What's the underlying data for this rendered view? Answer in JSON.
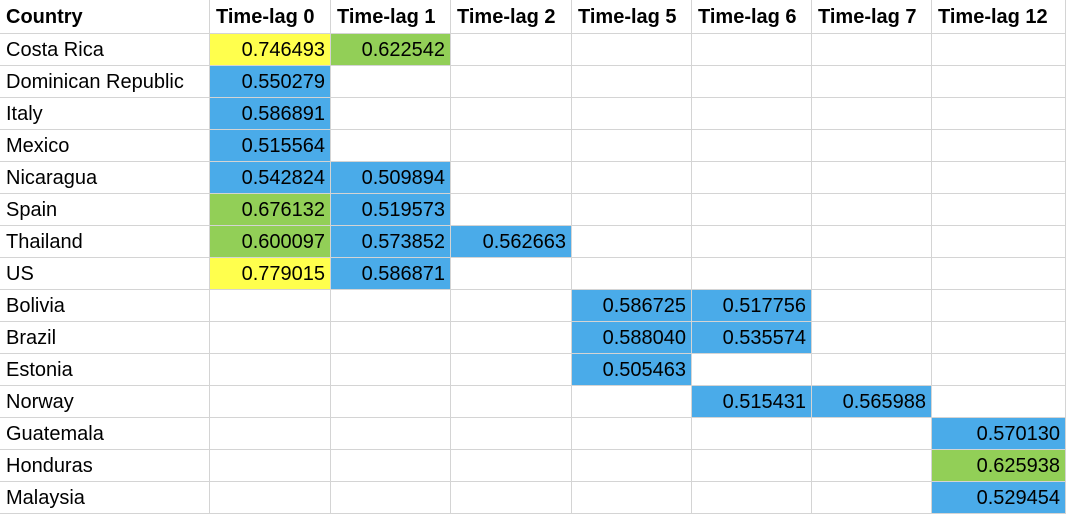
{
  "colors": {
    "yellow": "#ffff4d",
    "green": "#92cf57",
    "blue": "#4aabe9",
    "grid": "#d4d4d4"
  },
  "header": [
    "Country",
    "Time-lag 0",
    "Time-lag 1",
    "Time-lag 2",
    "Time-lag 5",
    "Time-lag 6",
    "Time-lag 7",
    "Time-lag 12"
  ],
  "rows": [
    {
      "country": "Costa Rica",
      "cells": [
        {
          "v": "0.746493",
          "c": "yellow"
        },
        {
          "v": "0.622542",
          "c": "green"
        },
        null,
        null,
        null,
        null,
        null
      ]
    },
    {
      "country": "Dominican Republic",
      "cells": [
        {
          "v": "0.550279",
          "c": "blue"
        },
        null,
        null,
        null,
        null,
        null,
        null
      ]
    },
    {
      "country": "Italy",
      "cells": [
        {
          "v": "0.586891",
          "c": "blue"
        },
        null,
        null,
        null,
        null,
        null,
        null
      ]
    },
    {
      "country": "Mexico",
      "cells": [
        {
          "v": "0.515564",
          "c": "blue"
        },
        null,
        null,
        null,
        null,
        null,
        null
      ]
    },
    {
      "country": "Nicaragua",
      "cells": [
        {
          "v": "0.542824",
          "c": "blue"
        },
        {
          "v": "0.509894",
          "c": "blue"
        },
        null,
        null,
        null,
        null,
        null
      ]
    },
    {
      "country": "Spain",
      "cells": [
        {
          "v": "0.676132",
          "c": "green"
        },
        {
          "v": "0.519573",
          "c": "blue"
        },
        null,
        null,
        null,
        null,
        null
      ]
    },
    {
      "country": "Thailand",
      "cells": [
        {
          "v": "0.600097",
          "c": "green"
        },
        {
          "v": "0.573852",
          "c": "blue"
        },
        {
          "v": "0.562663",
          "c": "blue"
        },
        null,
        null,
        null,
        null
      ]
    },
    {
      "country": "US",
      "cells": [
        {
          "v": "0.779015",
          "c": "yellow"
        },
        {
          "v": "0.586871",
          "c": "blue"
        },
        null,
        null,
        null,
        null,
        null
      ]
    },
    {
      "country": "Bolivia",
      "cells": [
        null,
        null,
        null,
        {
          "v": "0.586725",
          "c": "blue"
        },
        {
          "v": "0.517756",
          "c": "blue"
        },
        null,
        null
      ]
    },
    {
      "country": "Brazil",
      "cells": [
        null,
        null,
        null,
        {
          "v": "0.588040",
          "c": "blue"
        },
        {
          "v": "0.535574",
          "c": "blue"
        },
        null,
        null
      ]
    },
    {
      "country": "Estonia",
      "cells": [
        null,
        null,
        null,
        {
          "v": "0.505463",
          "c": "blue"
        },
        null,
        null,
        null
      ]
    },
    {
      "country": "Norway",
      "cells": [
        null,
        null,
        null,
        null,
        {
          "v": "0.515431",
          "c": "blue"
        },
        {
          "v": "0.565988",
          "c": "blue"
        },
        null
      ]
    },
    {
      "country": "Guatemala",
      "cells": [
        null,
        null,
        null,
        null,
        null,
        null,
        {
          "v": "0.570130",
          "c": "blue"
        }
      ]
    },
    {
      "country": "Honduras",
      "cells": [
        null,
        null,
        null,
        null,
        null,
        null,
        {
          "v": "0.625938",
          "c": "green"
        }
      ]
    },
    {
      "country": "Malaysia",
      "cells": [
        null,
        null,
        null,
        null,
        null,
        null,
        {
          "v": "0.529454",
          "c": "blue"
        }
      ]
    }
  ]
}
